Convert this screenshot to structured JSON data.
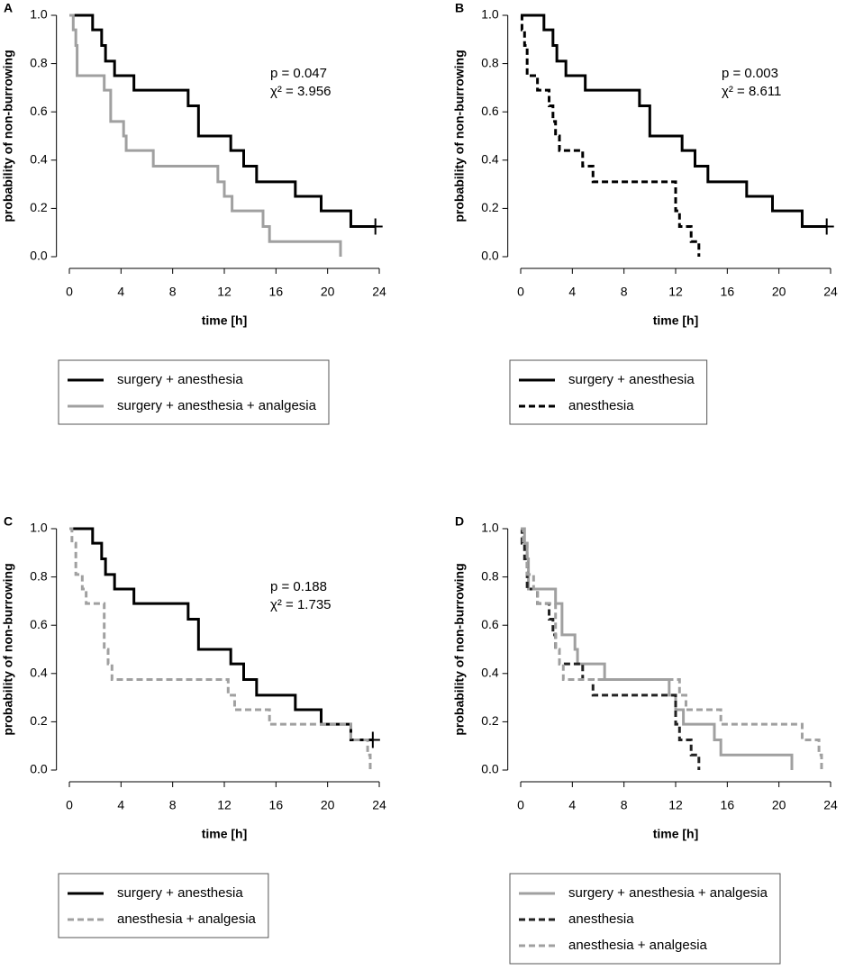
{
  "chart_data": [
    {
      "type": "step",
      "panel": "A",
      "xlabel": "time [h]",
      "ylabel": "probability of non-burrowing",
      "annotations": [
        "p = 0.047",
        "χ² = 3.956"
      ],
      "xlim": [
        -1,
        24.5
      ],
      "ylim": [
        0,
        1
      ],
      "xticks": [
        0,
        4,
        8,
        12,
        16,
        20,
        24
      ],
      "yticks": [
        {
          "value": 0,
          "label": "0.0"
        },
        0.2,
        0.4,
        0.6,
        0.8,
        {
          "value": 1,
          "label": "1.0"
        }
      ],
      "series": [
        {
          "name": "surgery + anesthesia",
          "color": "#000000",
          "dash": false,
          "censored_end": true,
          "x": [
            0,
            1.8,
            2.5,
            2.8,
            3.5,
            5,
            9.2,
            10,
            12.5,
            13.5,
            14.5,
            17.5,
            19.5,
            21.8,
            23.7
          ],
          "values": [
            1,
            0.94,
            0.875,
            0.81,
            0.75,
            0.69,
            0.625,
            0.5,
            0.44,
            0.375,
            0.31,
            0.25,
            0.19,
            0.125,
            0.125
          ]
        },
        {
          "name": "surgery + anesthesia + analgesia",
          "color": "#a0a0a0",
          "dash": false,
          "censored_end": false,
          "x": [
            0,
            0.3,
            0.5,
            0.6,
            2.7,
            3.2,
            4.2,
            4.4,
            6.5,
            11.5,
            12,
            12.6,
            15,
            15.5,
            21
          ],
          "values": [
            1,
            0.94,
            0.875,
            0.75,
            0.69,
            0.56,
            0.5,
            0.44,
            0.375,
            0.31,
            0.25,
            0.19,
            0.125,
            0.0625,
            0
          ]
        }
      ]
    },
    {
      "type": "step",
      "panel": "B",
      "xlabel": "time [h]",
      "ylabel": "probability of non-burrowing",
      "annotations": [
        "p = 0.003",
        "χ² = 8.611"
      ],
      "xlim": [
        -1,
        24.5
      ],
      "ylim": [
        0,
        1
      ],
      "xticks": [
        0,
        4,
        8,
        12,
        16,
        20,
        24
      ],
      "yticks": [
        {
          "value": 0,
          "label": "0.0"
        },
        0.2,
        0.4,
        0.6,
        0.8,
        {
          "value": 1,
          "label": "1.0"
        }
      ],
      "series": [
        {
          "name": "surgery + anesthesia",
          "color": "#000000",
          "dash": false,
          "censored_end": true,
          "x": [
            0,
            1.8,
            2.5,
            2.8,
            3.5,
            5,
            9.2,
            10,
            12.5,
            13.5,
            14.5,
            17.5,
            19.5,
            21.8,
            23.7
          ],
          "values": [
            1,
            0.94,
            0.875,
            0.81,
            0.75,
            0.69,
            0.625,
            0.5,
            0.44,
            0.375,
            0.31,
            0.25,
            0.19,
            0.125,
            0.125
          ]
        },
        {
          "name": "anesthesia",
          "color": "#000000",
          "dash": true,
          "censored_end": false,
          "x": [
            0,
            0.1,
            0.3,
            0.5,
            1.3,
            2.2,
            2.5,
            2.7,
            3,
            4.8,
            5.6,
            12,
            12.3,
            13.2,
            13.8
          ],
          "values": [
            1,
            0.94,
            0.875,
            0.75,
            0.69,
            0.625,
            0.56,
            0.5,
            0.44,
            0.375,
            0.31,
            0.19,
            0.125,
            0.0625,
            0
          ]
        }
      ]
    },
    {
      "type": "step",
      "panel": "C",
      "xlabel": "time [h]",
      "ylabel": "probability of non-burrowing",
      "annotations": [
        "p = 0.188",
        "χ² = 1.735"
      ],
      "xlim": [
        -1,
        24.5
      ],
      "ylim": [
        0,
        1
      ],
      "xticks": [
        0,
        4,
        8,
        12,
        16,
        20,
        24
      ],
      "yticks": [
        {
          "value": 0,
          "label": "0.0"
        },
        0.2,
        0.4,
        0.6,
        0.8,
        {
          "value": 1,
          "label": "1.0"
        }
      ],
      "series": [
        {
          "name": "surgery + anesthesia",
          "color": "#000000",
          "dash": false,
          "censored_end": true,
          "x": [
            0,
            1.8,
            2.5,
            2.8,
            3.5,
            5,
            9.2,
            10,
            12.5,
            13.5,
            14.5,
            17.5,
            19.5,
            21.8,
            23.5
          ],
          "values": [
            1,
            0.94,
            0.875,
            0.81,
            0.75,
            0.69,
            0.625,
            0.5,
            0.44,
            0.375,
            0.31,
            0.25,
            0.19,
            0.125,
            0.125
          ]
        },
        {
          "name": "anesthesia + analgesia",
          "color": "#a0a0a0",
          "dash": true,
          "censored_end": false,
          "x": [
            0,
            0.2,
            0.5,
            1,
            1.3,
            2.7,
            3,
            3.3,
            12.3,
            12.8,
            15.5,
            21.8,
            23.1,
            23.3
          ],
          "values": [
            1,
            0.94,
            0.81,
            0.75,
            0.69,
            0.5,
            0.44,
            0.375,
            0.31,
            0.25,
            0.19,
            0.125,
            0.0625,
            0
          ]
        }
      ]
    },
    {
      "type": "step",
      "panel": "D",
      "xlabel": "time [h]",
      "ylabel": "probability of non-burrowing",
      "xlim": [
        -1,
        24.5
      ],
      "ylim": [
        0,
        1
      ],
      "xticks": [
        0,
        4,
        8,
        12,
        16,
        20,
        24
      ],
      "yticks": [
        {
          "value": 0,
          "label": "0.0"
        },
        0.2,
        0.4,
        0.6,
        0.8,
        {
          "value": 1,
          "label": "1.0"
        }
      ],
      "series": [
        {
          "name": "surgery + anesthesia + analgesia",
          "color": "#a0a0a0",
          "dash": false,
          "censored_end": false,
          "x": [
            0,
            0.3,
            0.5,
            0.6,
            2.7,
            3.2,
            4.2,
            4.4,
            6.5,
            11.5,
            12,
            12.6,
            15,
            15.5,
            21
          ],
          "values": [
            1,
            0.94,
            0.875,
            0.75,
            0.69,
            0.56,
            0.5,
            0.44,
            0.375,
            0.31,
            0.25,
            0.19,
            0.125,
            0.0625,
            0
          ]
        },
        {
          "name": "anesthesia",
          "color": "#222222",
          "dash": true,
          "censored_end": false,
          "x": [
            0,
            0.1,
            0.3,
            0.5,
            1.3,
            2.2,
            2.5,
            2.7,
            3,
            4.8,
            5.6,
            12,
            12.3,
            13.2,
            13.8
          ],
          "values": [
            1,
            0.94,
            0.875,
            0.75,
            0.69,
            0.625,
            0.56,
            0.5,
            0.44,
            0.375,
            0.31,
            0.19,
            0.125,
            0.0625,
            0
          ]
        },
        {
          "name": "anesthesia + analgesia",
          "color": "#a0a0a0",
          "dash": true,
          "censored_end": false,
          "x": [
            0,
            0.2,
            0.5,
            1,
            1.3,
            2.7,
            3,
            3.3,
            12.3,
            12.8,
            15.5,
            21.8,
            23.1,
            23.3
          ],
          "values": [
            1,
            0.94,
            0.81,
            0.75,
            0.69,
            0.5,
            0.44,
            0.375,
            0.31,
            0.25,
            0.19,
            0.125,
            0.0625,
            0
          ]
        }
      ]
    }
  ]
}
